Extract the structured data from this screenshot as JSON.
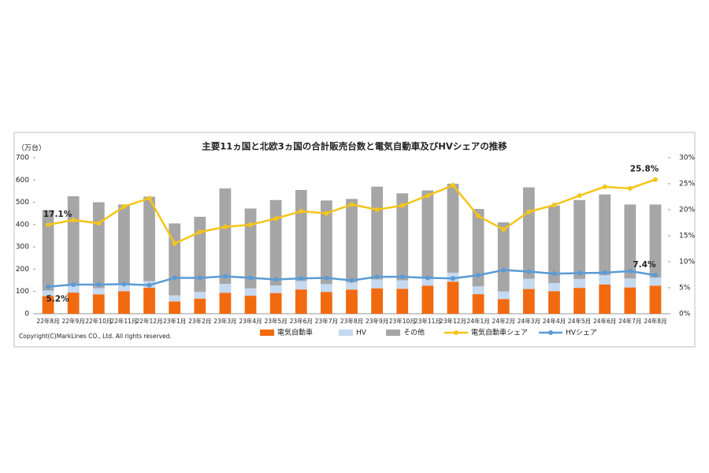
{
  "chart_data": {
    "type": "combo",
    "title": "主要11ヵ国と北欧3ヵ国の合計販売台数と電気自動車及びHVシェアの推移",
    "y_label": "（万台）",
    "source": "Copyright(C)MarkLines CO., Ltd. All rights reserved.",
    "categories": [
      "22年8月",
      "22年9月",
      "22年10月",
      "22年11月",
      "22年12月",
      "23年1月",
      "23年2月",
      "23年3月",
      "23年4月",
      "23年5月",
      "23年6月",
      "23年7月",
      "23年8月",
      "23年9月",
      "23年10月",
      "23年11月",
      "23年12月",
      "24年1月",
      "24年2月",
      "24年3月",
      "24年4月",
      "24年5月",
      "24年6月",
      "24年7月",
      "24年8月"
    ],
    "ylim": [
      0,
      700
    ],
    "yticks": [
      0,
      100,
      200,
      300,
      400,
      500,
      600,
      700
    ],
    "y2lim": [
      0,
      30
    ],
    "y2ticks": [
      {
        "value": 0,
        "label": "0%"
      },
      {
        "value": 5,
        "label": "5%"
      },
      {
        "value": 10,
        "label": "10%"
      },
      {
        "value": 15,
        "label": "15%"
      },
      {
        "value": 20,
        "label": "20%"
      },
      {
        "value": 25,
        "label": "25%"
      },
      {
        "value": 30,
        "label": "30%"
      }
    ],
    "grid": false,
    "series": [
      {
        "name": "電気自動車",
        "type": "bar",
        "color": "#f26a10",
        "values": [
          80,
          95,
          87,
          101,
          117,
          55,
          68,
          94,
          81,
          93,
          109,
          98,
          108,
          114,
          112,
          126,
          144,
          88,
          66,
          111,
          101,
          116,
          131,
          118,
          126
        ]
      },
      {
        "name": "HV",
        "type": "bar",
        "color": "#c5d9f0",
        "values": [
          24,
          30,
          28,
          28,
          29,
          28,
          30,
          40,
          33,
          34,
          38,
          35,
          33,
          40,
          38,
          38,
          40,
          35,
          34,
          46,
          37,
          40,
          42,
          40,
          36
        ]
      },
      {
        "name": "その他",
        "type": "bar",
        "color": "#a6a6a6",
        "values": [
          361,
          402,
          385,
          361,
          379,
          322,
          337,
          428,
          358,
          383,
          408,
          375,
          374,
          416,
          390,
          389,
          399,
          347,
          310,
          410,
          347,
          354,
          362,
          332,
          328
        ]
      },
      {
        "name": "電気自動車シェア",
        "type": "line",
        "axis": "y2",
        "color": "#f5c518",
        "values": [
          17.1,
          18,
          17.4,
          20.6,
          22.2,
          13.5,
          15.7,
          16.7,
          17.1,
          18.3,
          19.7,
          19.3,
          21.0,
          20.0,
          20.8,
          22.7,
          24.7,
          18.8,
          16.2,
          19.6,
          20.9,
          22.7,
          24.4,
          24.1,
          25.8
        ],
        "value_labels": [
          "17.1%",
          null,
          null,
          null,
          null,
          null,
          null,
          null,
          null,
          null,
          null,
          null,
          null,
          null,
          null,
          null,
          null,
          null,
          null,
          null,
          null,
          null,
          null,
          null,
          "25.8%"
        ]
      },
      {
        "name": "HVシェア",
        "type": "line",
        "axis": "y2",
        "color": "#5b9bd5",
        "values": [
          5.2,
          5.6,
          5.6,
          5.7,
          5.5,
          6.9,
          6.9,
          7.2,
          6.9,
          6.6,
          6.8,
          6.9,
          6.4,
          7.1,
          7.1,
          6.9,
          6.8,
          7.4,
          8.4,
          8.1,
          7.7,
          7.8,
          7.9,
          8.2,
          7.4
        ],
        "value_labels": [
          "5.2%",
          null,
          null,
          null,
          null,
          null,
          null,
          null,
          null,
          null,
          null,
          null,
          null,
          null,
          null,
          null,
          null,
          null,
          null,
          null,
          null,
          null,
          null,
          null,
          "7.4%"
        ]
      }
    ]
  }
}
